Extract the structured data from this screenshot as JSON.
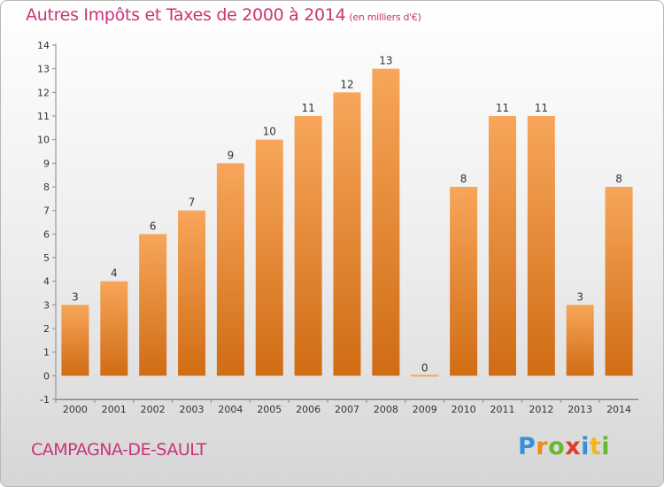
{
  "title": "Autres Impôts et Taxes de 2000 à 2014",
  "unit_label": "(en milliers d'€)",
  "commune": "CAMPAGNA-DE-SAULT",
  "logo": {
    "letters": [
      "P",
      "r",
      "o",
      "x",
      "i",
      "t",
      "i"
    ],
    "colors": [
      "#3a8fd8",
      "#f08a1c",
      "#6ab82e",
      "#e03a2e",
      "#3a8fd8",
      "#f2b51c",
      "#6ab82e"
    ]
  },
  "colors": {
    "bar_light": "#f7a65a",
    "bar_dark": "#d06c14",
    "title": "#cc3377"
  },
  "chart_data": {
    "type": "bar",
    "categories": [
      "2000",
      "2001",
      "2002",
      "2003",
      "2004",
      "2005",
      "2006",
      "2007",
      "2008",
      "2009",
      "2010",
      "2011",
      "2012",
      "2013",
      "2014"
    ],
    "values": [
      3,
      4,
      6,
      7,
      9,
      10,
      11,
      12,
      13,
      0,
      8,
      11,
      11,
      3,
      8
    ],
    "data_labels": [
      "3",
      "4",
      "6",
      "7",
      "9",
      "10",
      "11",
      "12",
      "13",
      "0",
      "8",
      "11",
      "11",
      "3",
      "8"
    ],
    "y_ticks": [
      -1,
      0,
      1,
      2,
      3,
      4,
      5,
      6,
      7,
      8,
      9,
      10,
      11,
      12,
      13,
      14
    ],
    "ylim": [
      -1,
      14
    ],
    "grid": false
  }
}
